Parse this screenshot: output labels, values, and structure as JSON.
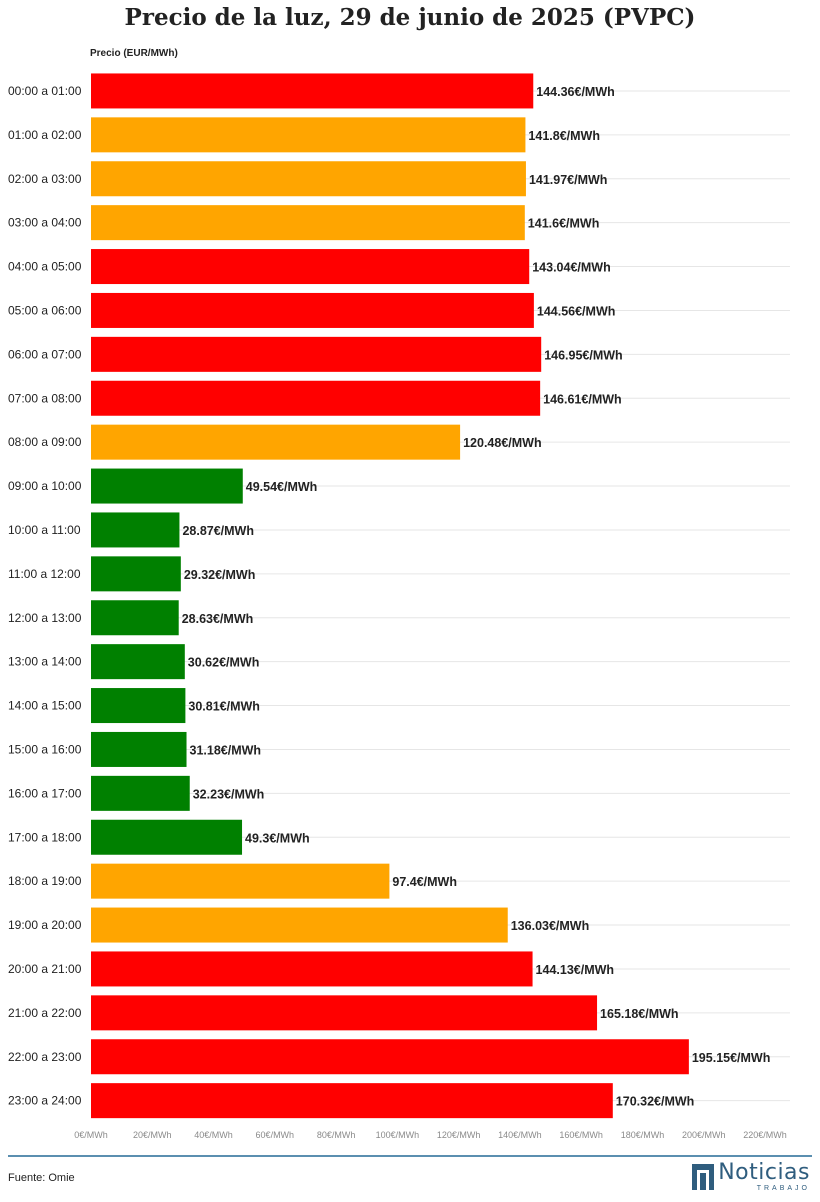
{
  "chart_data": {
    "type": "bar",
    "orientation": "horizontal",
    "title": "Precio de la luz, 29 de junio de 2025 (PVPC)",
    "xlabel": "Precio (EUR/MWh)",
    "xlim": [
      0,
      220
    ],
    "x_ticks": [
      "0€/MWh",
      "20€/MWh",
      "40€/MWh",
      "60€/MWh",
      "80€/MWh",
      "100€/MWh",
      "120€/MWh",
      "140€/MWh",
      "160€/MWh",
      "180€/MWh",
      "200€/MWh",
      "220€/MWh"
    ],
    "grid": true,
    "categories": [
      "00:00 a 01:00",
      "01:00 a 02:00",
      "02:00 a 03:00",
      "03:00 a 04:00",
      "04:00 a 05:00",
      "05:00 a 06:00",
      "06:00 a 07:00",
      "07:00 a 08:00",
      "08:00 a 09:00",
      "09:00 a 10:00",
      "10:00 a 11:00",
      "11:00 a 12:00",
      "12:00 a 13:00",
      "13:00 a 14:00",
      "14:00 a 15:00",
      "15:00 a 16:00",
      "16:00 a 17:00",
      "17:00 a 18:00",
      "18:00 a 19:00",
      "19:00 a 20:00",
      "20:00 a 21:00",
      "21:00 a 22:00",
      "22:00 a 23:00",
      "23:00 a 24:00"
    ],
    "values": [
      144.36,
      141.8,
      141.97,
      141.6,
      143.04,
      144.56,
      146.95,
      146.61,
      120.48,
      49.54,
      28.87,
      29.32,
      28.63,
      30.62,
      30.81,
      31.18,
      32.23,
      49.3,
      97.4,
      136.03,
      144.13,
      165.18,
      195.15,
      170.32
    ],
    "value_labels": [
      "144.36€/MWh",
      "141.8€/MWh",
      "141.97€/MWh",
      "141.6€/MWh",
      "143.04€/MWh",
      "144.56€/MWh",
      "146.95€/MWh",
      "146.61€/MWh",
      "120.48€/MWh",
      "49.54€/MWh",
      "28.87€/MWh",
      "29.32€/MWh",
      "28.63€/MWh",
      "30.62€/MWh",
      "30.81€/MWh",
      "31.18€/MWh",
      "32.23€/MWh",
      "49.3€/MWh",
      "97.4€/MWh",
      "136.03€/MWh",
      "144.13€/MWh",
      "165.18€/MWh",
      "195.15€/MWh",
      "170.32€/MWh"
    ],
    "bar_colors": [
      "#ff0000",
      "#ffa500",
      "#ffa500",
      "#ffa500",
      "#ff0000",
      "#ff0000",
      "#ff0000",
      "#ff0000",
      "#ffa500",
      "#008000",
      "#008000",
      "#008000",
      "#008000",
      "#008000",
      "#008000",
      "#008000",
      "#008000",
      "#008000",
      "#ffa500",
      "#ffa500",
      "#ff0000",
      "#ff0000",
      "#ff0000",
      "#ff0000"
    ]
  },
  "footer": {
    "source": "Fuente: Omie",
    "logo_word": "Noticias",
    "logo_sub": "TRABAJO"
  }
}
